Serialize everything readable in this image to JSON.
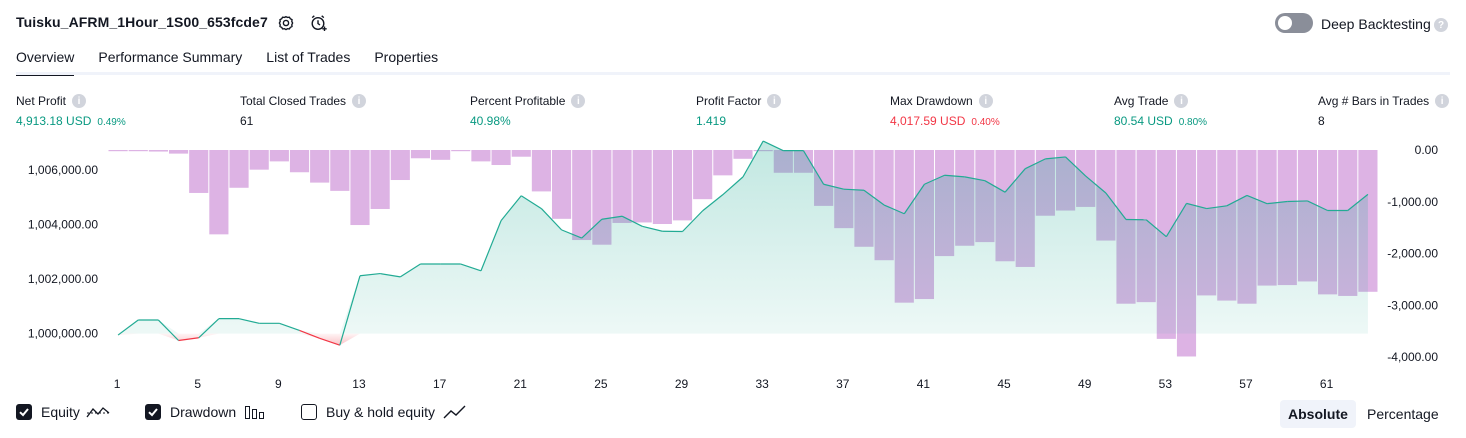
{
  "header": {
    "title": "Tuisku_AFRM_1Hour_1S00_653fcde7",
    "deep_backtesting_label": "Deep Backtesting",
    "deep_backtesting_enabled": false
  },
  "tabs": [
    {
      "label": "Overview",
      "active": true
    },
    {
      "label": "Performance Summary",
      "active": false
    },
    {
      "label": "List of Trades",
      "active": false
    },
    {
      "label": "Properties",
      "active": false
    }
  ],
  "metrics": [
    {
      "label": "Net Profit",
      "value": "4,913.18 USD",
      "pct": "0.49%",
      "color": "green"
    },
    {
      "label": "Total Closed Trades",
      "value": "61",
      "pct": "",
      "color": "neutral"
    },
    {
      "label": "Percent Profitable",
      "value": "40.98%",
      "pct": "",
      "color": "green"
    },
    {
      "label": "Profit Factor",
      "value": "1.419",
      "pct": "",
      "color": "green"
    },
    {
      "label": "Max Drawdown",
      "value": "4,017.59 USD",
      "pct": "0.40%",
      "color": "red"
    },
    {
      "label": "Avg Trade",
      "value": "80.54 USD",
      "pct": "0.80%",
      "color": "green"
    },
    {
      "label": "Avg # Bars in Trades",
      "value": "8",
      "pct": "",
      "color": "neutral"
    }
  ],
  "colors": {
    "green": "#089981",
    "red": "#f23645",
    "equity_line": "#22ab94",
    "drawdown_bar": "#ce93d8"
  },
  "chart_data": {
    "type": "bar+area",
    "x_ticks": [
      "1",
      "5",
      "9",
      "13",
      "17",
      "21",
      "25",
      "29",
      "33",
      "37",
      "41",
      "45",
      "49",
      "53",
      "57",
      "61"
    ],
    "left_ticks": [
      "1,006,000.00",
      "1,004,000.00",
      "1,002,000.00",
      "1,000,000.00"
    ],
    "right_ticks": [
      "0.00",
      "-1,000.00",
      "-2,000.00",
      "-3,000.00",
      "-4,000.00"
    ],
    "left_axis": {
      "min": 999000,
      "max": 1007200
    },
    "right_axis": {
      "min": -4000,
      "max": 0
    },
    "baseline_equity": 1000000,
    "series": [
      {
        "name": "Equity",
        "values": [
          999950,
          1000500,
          1000500,
          999750,
          999850,
          1000550,
          1000550,
          1000380,
          1000380,
          1000120,
          999830,
          999580,
          1002120,
          1002200,
          1002080,
          1002550,
          1002550,
          1002550,
          1002300,
          1004140,
          1005050,
          1004580,
          1003800,
          1003500,
          1004190,
          1004300,
          1003930,
          1003750,
          1003740,
          1004500,
          1005090,
          1005740,
          1007050,
          1006700,
          1006700,
          1005470,
          1005290,
          1005250,
          1004710,
          1004390,
          1005470,
          1005800,
          1005740,
          1005600,
          1005180,
          1006040,
          1006400,
          1006470,
          1005770,
          1005150,
          1004180,
          1004170,
          1003550,
          1004770,
          1004580,
          1004680,
          1005060,
          1004760,
          1004840,
          1004860,
          1004510,
          1004510,
          1005100
        ]
      },
      {
        "name": "Drawdown",
        "values": [
          0,
          0,
          -30,
          -70,
          -830,
          -1630,
          -730,
          -380,
          -220,
          -430,
          -630,
          -790,
          -1450,
          -1140,
          -580,
          -160,
          -190,
          -10,
          -220,
          -290,
          -130,
          -800,
          -1330,
          -1740,
          -1830,
          -1410,
          -1400,
          -1430,
          -1360,
          -950,
          -490,
          -170,
          0,
          -440,
          -440,
          -1080,
          -1510,
          -1870,
          -2130,
          -2950,
          -2880,
          -2050,
          -1850,
          -1780,
          -2150,
          -2260,
          -1270,
          -1170,
          -1100,
          -1750,
          -2970,
          -2940,
          -3650,
          -3990,
          -2810,
          -2910,
          -2970,
          -2620,
          -2610,
          -2540,
          -2790,
          -2820,
          -2740
        ]
      }
    ],
    "legend": [
      {
        "label": "Equity",
        "checked": true
      },
      {
        "label": "Drawdown",
        "checked": true
      },
      {
        "label": "Buy & hold equity",
        "checked": false
      }
    ],
    "scale_buttons": [
      {
        "label": "Absolute",
        "active": true
      },
      {
        "label": "Percentage",
        "active": false
      }
    ]
  }
}
